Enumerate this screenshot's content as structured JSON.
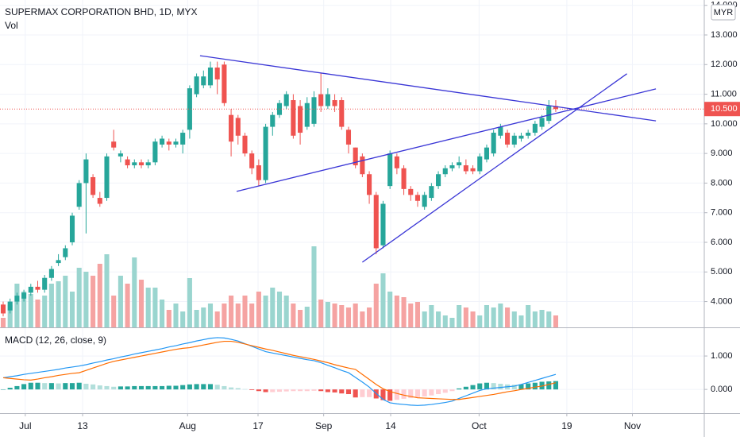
{
  "chart_data": [
    {
      "type": "candlestick",
      "title": "SUPERMAX CORPORATION BHD, 1D, MYX",
      "volume_label": "Vol",
      "currency": "MYR",
      "up_color": "#26a69a",
      "down_color": "#ef5350",
      "volume_up_color": "#9ad5cf",
      "volume_down_color": "#f5a3a2",
      "trendline_color": "#3a36d6",
      "grid": true,
      "xlim": [
        -0.46,
        101.5
      ],
      "xticks": [
        {
          "value": 3.2,
          "label": "Jul"
        },
        {
          "value": 11.5,
          "label": "13"
        },
        {
          "value": 26.7,
          "label": "Aug"
        },
        {
          "value": 36.9,
          "label": "17"
        },
        {
          "value": 46.4,
          "label": "Sep"
        },
        {
          "value": 56.1,
          "label": "14"
        },
        {
          "value": 68.9,
          "label": "Oct"
        },
        {
          "value": 81.6,
          "label": "19"
        },
        {
          "value": 91.1,
          "label": "Nov"
        }
      ],
      "ylim": [
        3.13,
        14.18
      ],
      "yticks": [
        {
          "value": 4,
          "label": "4.000"
        },
        {
          "value": 5,
          "label": "5.000"
        },
        {
          "value": 6,
          "label": "6.000"
        },
        {
          "value": 7,
          "label": "7.000"
        },
        {
          "value": 8,
          "label": "8.000"
        },
        {
          "value": 9,
          "label": "9.000"
        },
        {
          "value": 10,
          "label": "10.000"
        },
        {
          "value": 11,
          "label": "11.000"
        },
        {
          "value": 12,
          "label": "12.000"
        },
        {
          "value": 13,
          "label": "13.000"
        },
        {
          "value": 14,
          "label": "14.000"
        }
      ],
      "last_price": {
        "value": 10.5,
        "label": "10.500"
      },
      "open": [
        3.9,
        3.7,
        4.0,
        4.1,
        4.3,
        4.5,
        4.4,
        4.8,
        5.3,
        5.5,
        6.0,
        7.2,
        8.0,
        8.2,
        7.5,
        7.5,
        9.4,
        8.9,
        8.8,
        8.6,
        8.7,
        8.6,
        8.7,
        9.3,
        9.4,
        9.3,
        9.3,
        9.8,
        11.0,
        11.3,
        11.3,
        11.9,
        12.0,
        10.3,
        10.2,
        9.6,
        9.0,
        8.6,
        8.1,
        9.9,
        10.3,
        10.6,
        10.8,
        10.6,
        9.9,
        10.0,
        11.0,
        10.6,
        10.8,
        10.8,
        9.8,
        9.2,
        8.9,
        8.3,
        7.6,
        5.9,
        7.9,
        8.9,
        8.5,
        7.8,
        7.6,
        7.2,
        7.5,
        7.9,
        8.3,
        8.5,
        8.6,
        8.6,
        8.5,
        8.4,
        8.8,
        9.0,
        9.6,
        9.7,
        9.3,
        9.5,
        9.6,
        9.7,
        9.9,
        10.1,
        10.6
      ],
      "high": [
        4.0,
        4.1,
        4.3,
        4.4,
        4.6,
        4.7,
        4.9,
        5.2,
        5.6,
        5.9,
        7.0,
        8.1,
        9.0,
        8.3,
        7.7,
        9.0,
        9.8,
        9.1,
        8.9,
        8.8,
        8.8,
        8.8,
        9.5,
        9.6,
        9.5,
        9.5,
        9.8,
        11.3,
        11.7,
        11.8,
        12.1,
        12.1,
        12.1,
        10.5,
        10.3,
        9.7,
        9.1,
        8.8,
        10.0,
        10.4,
        10.8,
        11.1,
        11.0,
        10.8,
        10.9,
        11.1,
        11.7,
        11.2,
        11.0,
        10.9,
        9.9,
        9.2,
        9.0,
        8.4,
        7.7,
        7.4,
        9.1,
        9.0,
        8.6,
        7.9,
        7.7,
        7.7,
        8.0,
        8.4,
        8.6,
        8.7,
        8.9,
        8.8,
        8.6,
        9.0,
        9.3,
        9.8,
        10.0,
        9.8,
        9.7,
        9.7,
        9.8,
        10.1,
        10.3,
        10.8,
        10.8
      ],
      "low": [
        3.5,
        3.6,
        3.9,
        4.0,
        4.2,
        4.3,
        4.3,
        4.7,
        5.2,
        5.4,
        5.9,
        7.1,
        6.3,
        7.5,
        7.2,
        7.4,
        9.1,
        8.7,
        8.5,
        8.5,
        8.5,
        8.5,
        8.6,
        9.2,
        9.1,
        9.2,
        9.0,
        9.5,
        10.9,
        11.2,
        11.2,
        11.0,
        10.6,
        8.9,
        9.3,
        8.9,
        8.3,
        7.9,
        8.0,
        9.6,
        10.2,
        10.5,
        9.5,
        9.3,
        9.8,
        9.9,
        10.4,
        10.5,
        10.4,
        9.8,
        9.0,
        8.5,
        8.2,
        7.3,
        5.6,
        5.8,
        7.8,
        8.3,
        7.6,
        7.4,
        7.2,
        7.1,
        7.4,
        7.8,
        8.2,
        8.4,
        8.5,
        8.3,
        8.3,
        8.3,
        8.7,
        8.9,
        9.5,
        9.2,
        9.2,
        9.4,
        9.5,
        9.6,
        9.8,
        10.0,
        10.4
      ],
      "close": [
        3.6,
        4.0,
        4.2,
        4.3,
        4.5,
        4.4,
        4.8,
        5.1,
        5.4,
        5.8,
        6.9,
        8.0,
        8.8,
        7.6,
        7.3,
        8.9,
        9.2,
        9.0,
        8.6,
        8.7,
        8.6,
        8.7,
        9.4,
        9.5,
        9.3,
        9.4,
        9.7,
        11.2,
        11.6,
        11.6,
        11.9,
        11.5,
        10.7,
        9.4,
        9.6,
        9.0,
        8.5,
        8.1,
        9.9,
        10.3,
        10.7,
        11.0,
        9.6,
        9.7,
        10.7,
        10.9,
        10.6,
        11.0,
        10.6,
        9.9,
        9.3,
        8.6,
        8.3,
        7.6,
        5.8,
        7.3,
        9.0,
        8.5,
        7.8,
        7.6,
        7.4,
        7.6,
        7.9,
        8.3,
        8.5,
        8.6,
        8.7,
        8.4,
        8.4,
        8.9,
        9.2,
        9.7,
        9.9,
        9.3,
        9.6,
        9.6,
        9.7,
        10.0,
        10.2,
        10.6,
        10.5
      ],
      "volume": [
        12,
        28,
        55,
        45,
        42,
        35,
        40,
        55,
        58,
        65,
        45,
        75,
        70,
        65,
        80,
        92,
        40,
        65,
        55,
        88,
        60,
        50,
        50,
        35,
        22,
        30,
        20,
        62,
        22,
        25,
        30,
        20,
        30,
        40,
        30,
        40,
        30,
        45,
        40,
        50,
        45,
        40,
        30,
        22,
        26,
        102,
        35,
        32,
        30,
        28,
        25,
        30,
        20,
        25,
        55,
        68,
        45,
        40,
        38,
        30,
        32,
        20,
        28,
        20,
        15,
        12,
        28,
        25,
        20,
        15,
        28,
        25,
        30,
        25,
        20,
        15,
        28,
        20,
        22,
        20,
        15
      ],
      "trendlines": [
        {
          "x": [
            28.5,
            94.5
          ],
          "y": [
            12.3,
            10.1
          ]
        },
        {
          "x": [
            33.8,
            94.5
          ],
          "y": [
            7.72,
            11.18
          ]
        },
        {
          "x": [
            52,
            90.3
          ],
          "y": [
            5.33,
            11.69
          ]
        }
      ]
    },
    {
      "type": "macd",
      "title": "MACD (12, 26, close, 9)",
      "ylim": [
        -0.71,
        1.81
      ],
      "yticks": [
        {
          "value": 0,
          "label": "0.000"
        },
        {
          "value": 1,
          "label": "1.000"
        }
      ],
      "series": [
        {
          "color": "#2196f3",
          "values": [
            0.35,
            0.38,
            0.41,
            0.45,
            0.48,
            0.51,
            0.54,
            0.57,
            0.6,
            0.64,
            0.67,
            0.7,
            0.74,
            0.79,
            0.83,
            0.88,
            0.92,
            0.97,
            1.01,
            1.06,
            1.1,
            1.14,
            1.18,
            1.22,
            1.27,
            1.31,
            1.36,
            1.4,
            1.45,
            1.49,
            1.53,
            1.55,
            1.54,
            1.5,
            1.45,
            1.37,
            1.29,
            1.21,
            1.13,
            1.09,
            1.05,
            1.01,
            0.97,
            0.93,
            0.89,
            0.86,
            0.8,
            0.72,
            0.65,
            0.57,
            0.5,
            0.36,
            0.22,
            0.07,
            -0.12,
            -0.3,
            -0.4,
            -0.43,
            -0.45,
            -0.47,
            -0.48,
            -0.47,
            -0.45,
            -0.42,
            -0.39,
            -0.35,
            -0.27,
            -0.19,
            -0.11,
            -0.03,
            0.02,
            0.04,
            0.06,
            0.08,
            0.1,
            0.15,
            0.21,
            0.27,
            0.33,
            0.39,
            0.45
          ]
        },
        {
          "color": "#ff6d00",
          "values": [
            0.35,
            0.33,
            0.31,
            0.29,
            0.28,
            0.31,
            0.35,
            0.38,
            0.42,
            0.45,
            0.48,
            0.5,
            0.57,
            0.64,
            0.71,
            0.78,
            0.84,
            0.88,
            0.92,
            0.96,
            1.0,
            1.04,
            1.08,
            1.12,
            1.16,
            1.2,
            1.23,
            1.25,
            1.29,
            1.33,
            1.37,
            1.41,
            1.44,
            1.44,
            1.41,
            1.36,
            1.31,
            1.26,
            1.21,
            1.17,
            1.12,
            1.07,
            1.02,
            0.98,
            0.94,
            0.9,
            0.85,
            0.8,
            0.74,
            0.69,
            0.64,
            0.6,
            0.45,
            0.3,
            0.15,
            0.02,
            -0.06,
            -0.12,
            -0.17,
            -0.21,
            -0.25,
            -0.26,
            -0.27,
            -0.28,
            -0.29,
            -0.3,
            -0.3,
            -0.27,
            -0.24,
            -0.21,
            -0.18,
            -0.15,
            -0.11,
            -0.07,
            -0.04,
            0.0,
            0.03,
            0.07,
            0.1,
            0.15,
            0.2
          ]
        }
      ],
      "histogram": [
        0,
        0.05,
        0.1,
        0.16,
        0.2,
        0.2,
        0.19,
        0.19,
        0.18,
        0.19,
        0.19,
        0.2,
        0.17,
        0.15,
        0.12,
        0.1,
        0.08,
        0.09,
        0.09,
        0.1,
        0.1,
        0.1,
        0.1,
        0.1,
        0.11,
        0.11,
        0.13,
        0.15,
        0.16,
        0.16,
        0.16,
        0.14,
        0.1,
        0.06,
        0.04,
        0.01,
        -0.02,
        -0.05,
        -0.08,
        -0.08,
        -0.07,
        -0.06,
        -0.05,
        -0.05,
        -0.05,
        -0.04,
        -0.05,
        -0.08,
        -0.09,
        -0.12,
        -0.14,
        -0.24,
        -0.23,
        -0.23,
        -0.27,
        -0.32,
        -0.34,
        -0.31,
        -0.28,
        -0.26,
        -0.23,
        -0.21,
        -0.18,
        -0.14,
        -0.1,
        -0.05,
        0.03,
        0.08,
        0.13,
        0.18,
        0.2,
        0.19,
        0.17,
        0.15,
        0.14,
        0.15,
        0.18,
        0.2,
        0.23,
        0.24,
        0.25
      ],
      "histogram_colors": [
        "#26a69a",
        "#b2dfdb",
        "#ffcdd2",
        "#ef5350"
      ]
    }
  ]
}
